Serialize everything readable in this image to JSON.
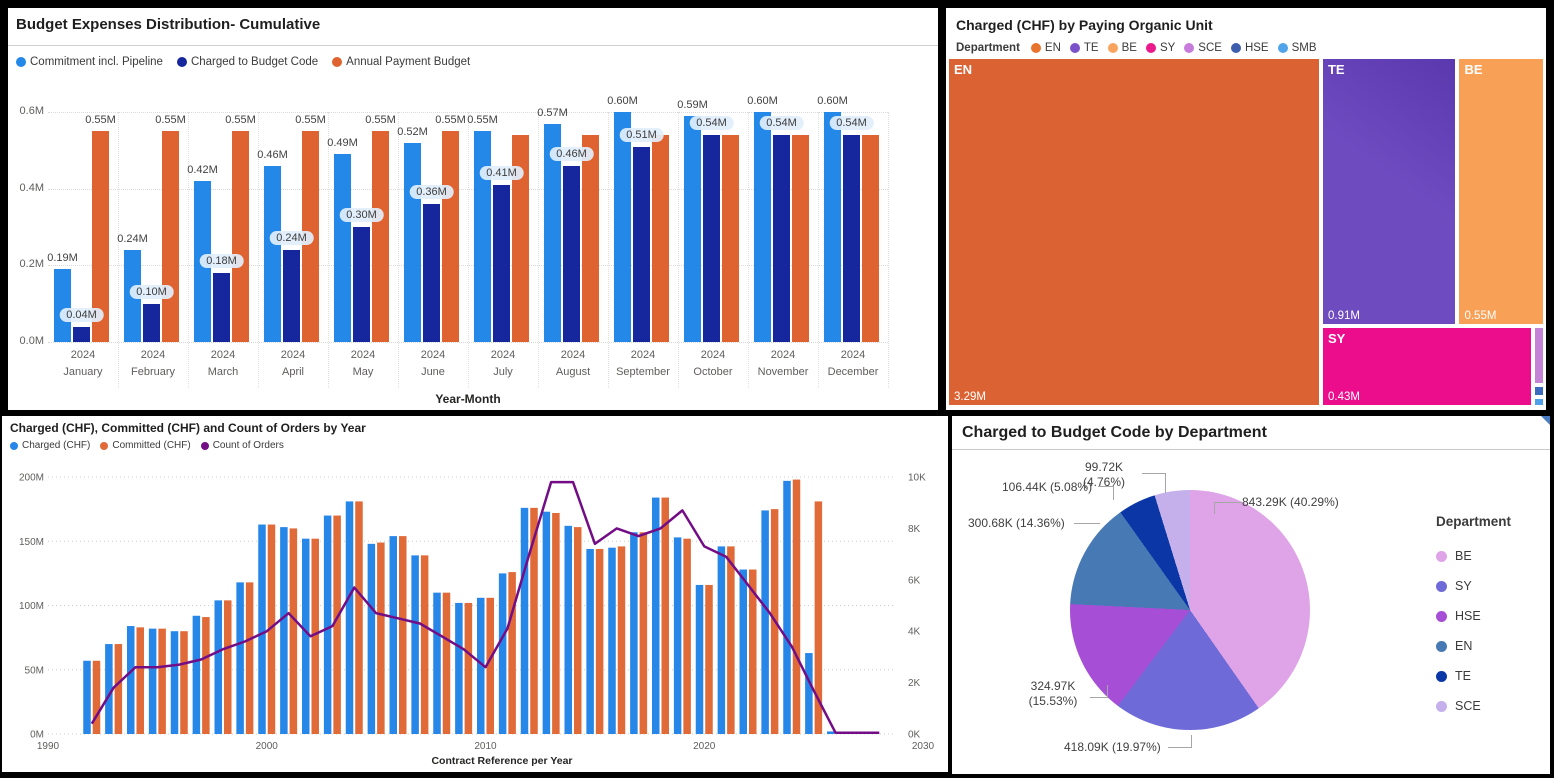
{
  "chart_data": [
    {
      "type": "bar",
      "title": "Budget Expenses Distribution- Cumulative",
      "xlabel": "Year-Month",
      "year": "2024",
      "categories": [
        "January",
        "February",
        "March",
        "April",
        "May",
        "June",
        "July",
        "August",
        "September",
        "October",
        "November",
        "December"
      ],
      "y_ticks": [
        "0.0M",
        "0.2M",
        "0.4M",
        "0.6M"
      ],
      "ylim": [
        0,
        0.6
      ],
      "series": [
        {
          "name": "Commitment incl. Pipeline",
          "color": "#2488E8",
          "values": [
            0.19,
            0.24,
            0.42,
            0.46,
            0.49,
            0.52,
            0.55,
            0.57,
            0.6,
            0.59,
            0.6,
            0.6
          ],
          "labels": [
            "0.19M",
            "0.24M",
            "0.42M",
            "0.46M",
            "0.49M",
            "0.52M",
            "0.55M",
            "0.57M",
            "0.60M",
            "0.59M",
            "0.60M",
            "0.60M"
          ]
        },
        {
          "name": "Charged to Budget Code",
          "color": "#16279E",
          "values": [
            0.04,
            0.1,
            0.18,
            0.24,
            0.3,
            0.36,
            0.41,
            0.46,
            0.51,
            0.54,
            0.54,
            0.54
          ],
          "labels": [
            "0.04M",
            "0.10M",
            "0.18M",
            "0.24M",
            "0.30M",
            "0.36M",
            "0.41M",
            "0.46M",
            "0.51M",
            "0.54M",
            "0.54M",
            "0.54M"
          ]
        },
        {
          "name": "Annual Payment Budget",
          "color": "#DE6330",
          "values": [
            0.55,
            0.55,
            0.55,
            0.55,
            0.55,
            0.55,
            0.54,
            0.54,
            0.54,
            0.54,
            0.54,
            0.54
          ],
          "labels": [
            "0.55M",
            "0.55M",
            "0.55M",
            "0.55M",
            "0.55M",
            "0.55M",
            null,
            null,
            null,
            null,
            null,
            null
          ]
        }
      ]
    },
    {
      "type": "treemap",
      "title": "Charged (CHF) by Paying Organic Unit",
      "legend_title": "Department",
      "legend": [
        {
          "label": "EN",
          "color": "#E8732C"
        },
        {
          "label": "TE",
          "color": "#7B52C9"
        },
        {
          "label": "BE",
          "color": "#F9A35F"
        },
        {
          "label": "SY",
          "color": "#EA1A8C"
        },
        {
          "label": "SCE",
          "color": "#C77BDB"
        },
        {
          "label": "HSE",
          "color": "#3D5EAC"
        },
        {
          "label": "SMB",
          "color": "#52A4EA"
        }
      ],
      "blocks": [
        {
          "label": "EN",
          "value": "3.29M",
          "color": "#DB6333",
          "x": 0,
          "y": 0,
          "w": 62.4,
          "h": 100
        },
        {
          "label": "TE",
          "value": "0.91M",
          "color": "#6F4BC0",
          "x": 62.75,
          "y": 0,
          "w": 22.55,
          "h": 76.7,
          "gradient": true
        },
        {
          "label": "BE",
          "value": "0.55M",
          "color": "#F9A057",
          "x": 85.65,
          "y": 0,
          "w": 14.35,
          "h": 76.7
        },
        {
          "label": "SY",
          "value": "0.43M",
          "color": "#EB0D8C",
          "x": 62.75,
          "y": 77.2,
          "w": 35.2,
          "h": 22.8
        },
        {
          "label": "SCE",
          "value": "",
          "color": "#C583D8",
          "x": 98.3,
          "y": 77.2,
          "w": 1.7,
          "h": 16.5
        },
        {
          "label": "HSE",
          "value": "",
          "color": "#3B6ABF",
          "x": 98.3,
          "y": 94.3,
          "w": 1.7,
          "h": 2.9
        },
        {
          "label": "SMB",
          "value": "",
          "color": "#4FA0E8",
          "x": 98.3,
          "y": 97.6,
          "w": 1.7,
          "h": 2.4
        }
      ]
    },
    {
      "type": "bar+line",
      "title": "Charged (CHF), Committed (CHF) and Count of Orders by Year",
      "xlabel": "Contract Reference per Year",
      "x_ticks": [
        1990,
        2000,
        2010,
        2020,
        2030
      ],
      "left_y_ticks": [
        "0M",
        "50M",
        "100M",
        "150M",
        "200M"
      ],
      "right_y_ticks": [
        "0K",
        "2K",
        "4K",
        "6K",
        "8K",
        "10K"
      ],
      "left_ylim": [
        0,
        200
      ],
      "right_ylim": [
        0,
        10
      ],
      "bar_start_year": 1992,
      "series": [
        {
          "name": "Charged (CHF)",
          "kind": "bar",
          "color": "#2787E8",
          "values": [
            57,
            70,
            84,
            82,
            80,
            92,
            104,
            118,
            163,
            161,
            152,
            170,
            181,
            148,
            154,
            139,
            110,
            102,
            106,
            125,
            176,
            173,
            162,
            144,
            145,
            157,
            184,
            153,
            116,
            146,
            128,
            174,
            197,
            63,
            2
          ]
        },
        {
          "name": "Committed (CHF)",
          "kind": "bar",
          "color": "#E06A38",
          "values": [
            57,
            70,
            83,
            82,
            80,
            91,
            104,
            118,
            163,
            160,
            152,
            170,
            181,
            149,
            154,
            139,
            110,
            102,
            106,
            126,
            176,
            172,
            161,
            144,
            146,
            157,
            184,
            152,
            116,
            146,
            128,
            175,
            198,
            181,
            0
          ]
        },
        {
          "name": "Count of Orders",
          "kind": "line",
          "color": "#730D86",
          "start_year": 1992,
          "values": [
            0.4,
            1.8,
            2.6,
            2.6,
            2.7,
            2.9,
            3.3,
            3.6,
            4.0,
            4.7,
            3.8,
            4.2,
            5.7,
            4.7,
            4.5,
            4.3,
            3.8,
            3.3,
            2.6,
            4.1,
            7.0,
            9.8,
            9.8,
            7.4,
            8.0,
            7.7,
            8.0,
            8.7,
            7.3,
            6.9,
            5.8,
            4.7,
            3.4,
            1.7,
            0.05,
            0.05,
            0.05
          ]
        }
      ]
    },
    {
      "type": "pie",
      "title": "Charged to Budget Code by Department",
      "legend_title": "Department",
      "slices": [
        {
          "label": "BE",
          "value": "843.29K",
          "pct": 40.29,
          "color": "#DFA4E8",
          "callout": "843.29K (40.29%)"
        },
        {
          "label": "SY",
          "value": "418.09K",
          "pct": 19.97,
          "color": "#6E6AD8",
          "callout": "418.09K (19.97%)"
        },
        {
          "label": "HSE",
          "value": "324.97K",
          "pct": 15.53,
          "color": "#A64FD6",
          "callout": "324.97K (15.53%)"
        },
        {
          "label": "EN",
          "value": "300.68K",
          "pct": 14.36,
          "color": "#4779B5",
          "callout": "300.68K (14.36%)"
        },
        {
          "label": "TE",
          "value": "106.44K",
          "pct": 5.08,
          "color": "#0B37A6",
          "callout": "106.44K (5.08%)"
        },
        {
          "label": "SCE",
          "value": "99.72K",
          "pct": 4.76,
          "color": "#C5B0EC",
          "callout": "99.72K (4.76%)"
        }
      ]
    }
  ]
}
